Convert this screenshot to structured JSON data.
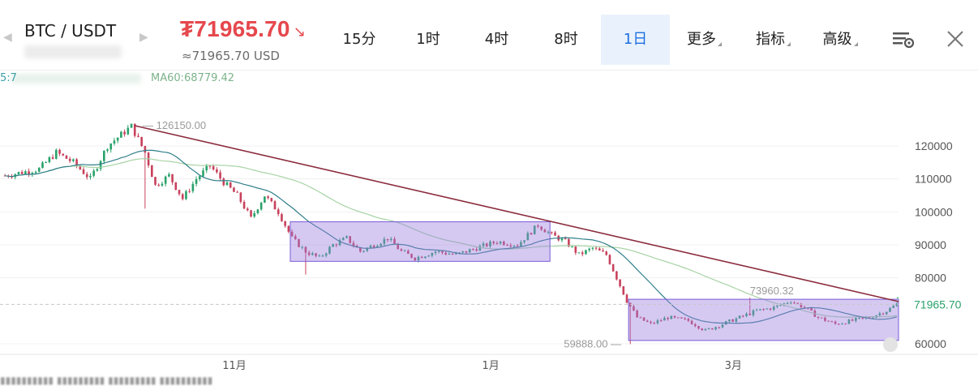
{
  "header": {
    "pair": "BTC / USDT",
    "price": "₮71965.70",
    "price_arrow": "↘",
    "price_usd": "≈71965.70 USD",
    "nav_prev_icon": "chevron-left-icon",
    "nav_next_icon": "chevron-right-icon"
  },
  "tabs": [
    {
      "label": "15分",
      "active": false
    },
    {
      "label": "1时",
      "active": false
    },
    {
      "label": "4时",
      "active": false
    },
    {
      "label": "8时",
      "active": false
    },
    {
      "label": "1日",
      "active": true
    },
    {
      "label": "更多",
      "active": false,
      "dropdown": true
    },
    {
      "label": "指标",
      "active": false,
      "dropdown": true
    },
    {
      "label": "高级",
      "active": false,
      "dropdown": true
    }
  ],
  "toolbar": {
    "settings_icon": "chart-settings-icon",
    "close_icon": "close-icon"
  },
  "indicators": {
    "ma_left": "5:7",
    "ma60": "MA60:68779.42"
  },
  "colors": {
    "up": "#2aa26a",
    "down": "#c8425c",
    "box": "#9b7ee0",
    "trendline": "#8b2b3c",
    "ma_short": "#2f7f8a",
    "ma_long": "#a7d3a5",
    "price_line": "#2aa26a",
    "accent": "#1f6fe0",
    "price_red": "#e5484d"
  },
  "chart_data": {
    "type": "candlestick",
    "y_ticks": [
      120000,
      110000,
      100000,
      90000,
      80000,
      60000
    ],
    "y_tick_labels": [
      "120000",
      "110000",
      "100000",
      "90000",
      "80000",
      "60000"
    ],
    "ylim": [
      57000,
      131000
    ],
    "x_ticks": [
      {
        "label": "11月",
        "index": 66
      },
      {
        "label": "1月",
        "index": 142
      },
      {
        "label": "3月",
        "index": 213
      }
    ],
    "n_candles": 262,
    "annotations": {
      "high_label": "126150.00",
      "high_value": 126150,
      "low_label": "59888.00",
      "low_value": 59888,
      "local_high_label": "73960.32",
      "local_high_value": 73960,
      "current_price_label": "71965.70",
      "current_price_value": 71965.7
    },
    "anchors": [
      [
        0,
        111000
      ],
      [
        10,
        113000
      ],
      [
        15,
        118000
      ],
      [
        20,
        115000
      ],
      [
        25,
        110000
      ],
      [
        30,
        120000
      ],
      [
        37,
        126000
      ],
      [
        41,
        118000
      ],
      [
        44,
        108000
      ],
      [
        48,
        111000
      ],
      [
        52,
        104000
      ],
      [
        56,
        110000
      ],
      [
        60,
        114000
      ],
      [
        64,
        109000
      ],
      [
        68,
        105000
      ],
      [
        72,
        98000
      ],
      [
        76,
        105000
      ],
      [
        80,
        100000
      ],
      [
        84,
        92000
      ],
      [
        88,
        88000
      ],
      [
        92,
        86000
      ],
      [
        96,
        90000
      ],
      [
        100,
        92000
      ],
      [
        104,
        88000
      ],
      [
        108,
        90000
      ],
      [
        112,
        92000
      ],
      [
        116,
        88000
      ],
      [
        120,
        86000
      ],
      [
        126,
        88000
      ],
      [
        132,
        87000
      ],
      [
        138,
        89000
      ],
      [
        144,
        91000
      ],
      [
        150,
        90000
      ],
      [
        156,
        96000
      ],
      [
        160,
        93000
      ],
      [
        164,
        91000
      ],
      [
        168,
        87000
      ],
      [
        172,
        89000
      ],
      [
        176,
        87000
      ],
      [
        179,
        80000
      ],
      [
        182,
        73000
      ],
      [
        185,
        68000
      ],
      [
        189,
        66000
      ],
      [
        194,
        68000
      ],
      [
        200,
        67000
      ],
      [
        205,
        64000
      ],
      [
        210,
        66000
      ],
      [
        215,
        68000
      ],
      [
        220,
        70000
      ],
      [
        225,
        71000
      ],
      [
        230,
        73000
      ],
      [
        234,
        71000
      ],
      [
        238,
        68000
      ],
      [
        243,
        66000
      ],
      [
        248,
        67000
      ],
      [
        253,
        68000
      ],
      [
        258,
        70000
      ],
      [
        261,
        72000
      ]
    ],
    "consolidation_boxes": [
      {
        "start_index": 84,
        "end_index": 160,
        "low": 85000,
        "high": 97000
      },
      {
        "start_index": 183,
        "end_index": 262,
        "low": 61000,
        "high": 73500
      }
    ],
    "trendline": {
      "start_index": 38,
      "start_value": 126150,
      "end_index": 288,
      "end_value": 66500
    }
  }
}
